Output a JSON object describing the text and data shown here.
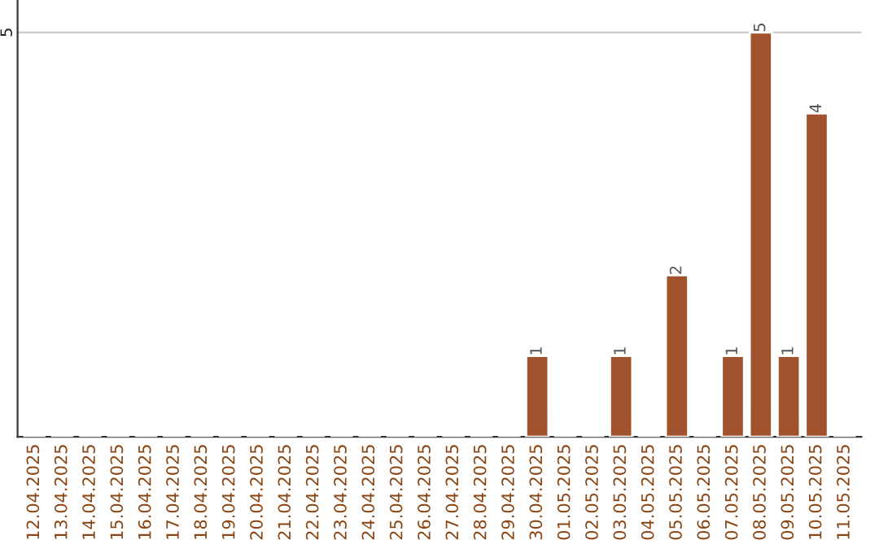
{
  "chart_data": {
    "type": "bar",
    "categories": [
      "12.04.2025",
      "13.04.2025",
      "14.04.2025",
      "15.04.2025",
      "16.04.2025",
      "17.04.2025",
      "18.04.2025",
      "19.04.2025",
      "20.04.2025",
      "21.04.2025",
      "22.04.2025",
      "23.04.2025",
      "24.04.2025",
      "25.04.2025",
      "26.04.2025",
      "27.04.2025",
      "28.04.2025",
      "29.04.2025",
      "30.04.2025",
      "01.05.2025",
      "02.05.2025",
      "03.05.2025",
      "04.05.2025",
      "05.05.2025",
      "06.05.2025",
      "07.05.2025",
      "08.05.2025",
      "09.05.2025",
      "10.05.2025",
      "11.05.2025"
    ],
    "values": [
      null,
      null,
      null,
      null,
      null,
      null,
      null,
      null,
      null,
      null,
      null,
      null,
      null,
      null,
      null,
      null,
      null,
      null,
      1,
      null,
      null,
      1,
      null,
      2,
      null,
      1,
      5,
      1,
      4,
      null
    ],
    "color": "#a0522d",
    "ylim": [
      0,
      5.4
    ],
    "yticks": [
      5
    ],
    "grid": "y",
    "data_labels": true
  }
}
